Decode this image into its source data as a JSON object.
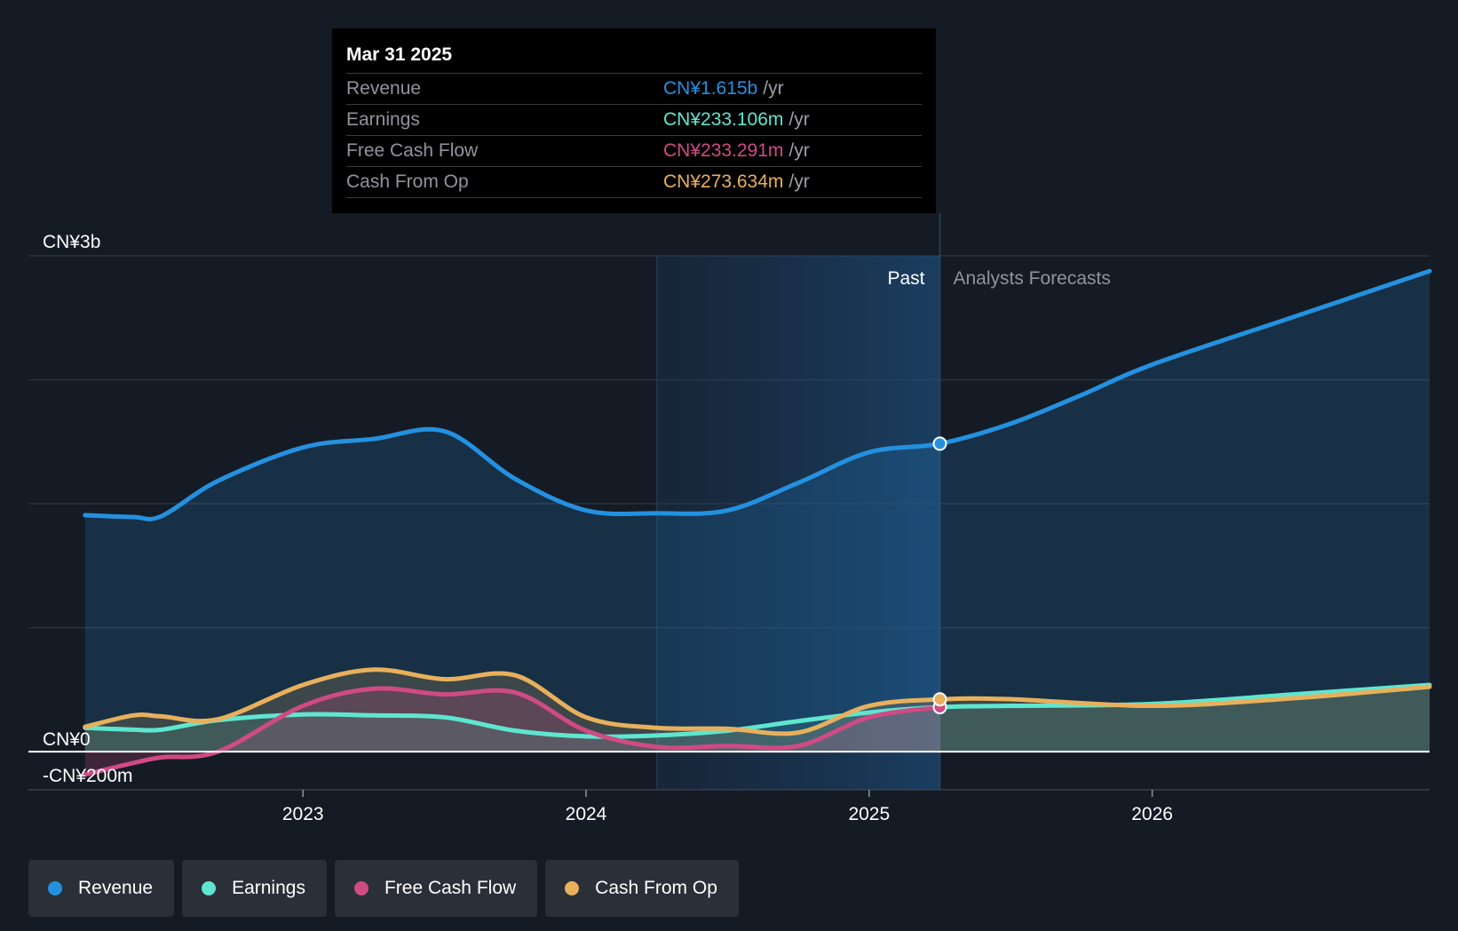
{
  "colors": {
    "revenue": "#2491e0",
    "earnings": "#5ee6d0",
    "fcf": "#d04a84",
    "cfo": "#e8b05c",
    "background": "#151b24"
  },
  "tooltip": {
    "date": "Mar 31 2025",
    "rows": [
      {
        "label": "Revenue",
        "value": "CN¥1.615b",
        "unit": "/yr",
        "color": "#2491e0"
      },
      {
        "label": "Earnings",
        "value": "CN¥233.106m",
        "unit": "/yr",
        "color": "#5ee6d0"
      },
      {
        "label": "Free Cash Flow",
        "value": "CN¥233.291m",
        "unit": "/yr",
        "color": "#d04a84"
      },
      {
        "label": "Cash From Op",
        "value": "CN¥273.634m",
        "unit": "/yr",
        "color": "#e8b05c"
      }
    ]
  },
  "legend": [
    {
      "label": "Revenue",
      "color": "#2491e0"
    },
    {
      "label": "Earnings",
      "color": "#5ee6d0"
    },
    {
      "label": "Free Cash Flow",
      "color": "#d04a84"
    },
    {
      "label": "Cash From Op",
      "color": "#e8b05c"
    }
  ],
  "chart_data": {
    "type": "line",
    "y_unit": "CN¥ millions",
    "ylim": [
      -200,
      2600
    ],
    "y_tick_labels": [
      {
        "value": 2600,
        "label": "CN¥3b"
      },
      {
        "value": 0,
        "label": "CN¥0"
      },
      {
        "value": -200,
        "label": "-CN¥200m"
      }
    ],
    "x_tick_labels": [
      {
        "value": 2023.0,
        "label": "2023"
      },
      {
        "value": 2024.0,
        "label": "2024"
      },
      {
        "value": 2025.0,
        "label": "2025"
      },
      {
        "value": 2026.0,
        "label": "2026"
      }
    ],
    "xlim": [
      2022.03,
      2026.98
    ],
    "past_label": "Past",
    "forecast_label": "Analysts Forecasts",
    "past_shade_start": 2024.25,
    "past_end": 2025.25,
    "grid": true,
    "series": [
      {
        "name": "Revenue",
        "key": "revenue",
        "x": [
          2022.23,
          2022.4,
          2022.5,
          2022.7,
          2023.0,
          2023.25,
          2023.5,
          2023.75,
          2024.0,
          2024.25,
          2024.5,
          2024.75,
          2025.0,
          2025.25,
          2025.5,
          2025.75,
          2026.0,
          2026.5,
          2026.98
        ],
        "values": [
          1240,
          1230,
          1235,
          1420,
          1595,
          1640,
          1680,
          1430,
          1265,
          1250,
          1265,
          1410,
          1570,
          1615,
          1720,
          1870,
          2030,
          2280,
          2520
        ]
      },
      {
        "name": "Earnings",
        "key": "earnings",
        "x": [
          2022.23,
          2022.4,
          2022.5,
          2022.7,
          2023.0,
          2023.25,
          2023.5,
          2023.75,
          2024.0,
          2024.25,
          2024.5,
          2024.75,
          2025.0,
          2025.25,
          2025.5,
          2026.0,
          2026.5,
          2026.98
        ],
        "values": [
          125,
          115,
          115,
          165,
          195,
          190,
          180,
          110,
          80,
          85,
          110,
          160,
          205,
          233,
          240,
          250,
          300,
          350
        ]
      },
      {
        "name": "Free Cash Flow",
        "key": "fcf",
        "x": [
          2022.23,
          2022.4,
          2022.5,
          2022.7,
          2023.0,
          2023.25,
          2023.5,
          2023.75,
          2024.0,
          2024.25,
          2024.5,
          2024.75,
          2025.0,
          2025.25
        ],
        "values": [
          -120,
          -60,
          -30,
          0,
          240,
          330,
          300,
          310,
          110,
          25,
          30,
          30,
          180,
          233
        ]
      },
      {
        "name": "Cash From Op",
        "key": "cfo",
        "x": [
          2022.23,
          2022.4,
          2022.5,
          2022.7,
          2023.0,
          2023.25,
          2023.5,
          2023.75,
          2024.0,
          2024.25,
          2024.5,
          2024.75,
          2025.0,
          2025.25,
          2025.5,
          2026.0,
          2026.5,
          2026.98
        ],
        "values": [
          130,
          190,
          185,
          170,
          350,
          430,
          380,
          400,
          180,
          125,
          120,
          100,
          240,
          274,
          275,
          240,
          280,
          340
        ]
      }
    ]
  }
}
